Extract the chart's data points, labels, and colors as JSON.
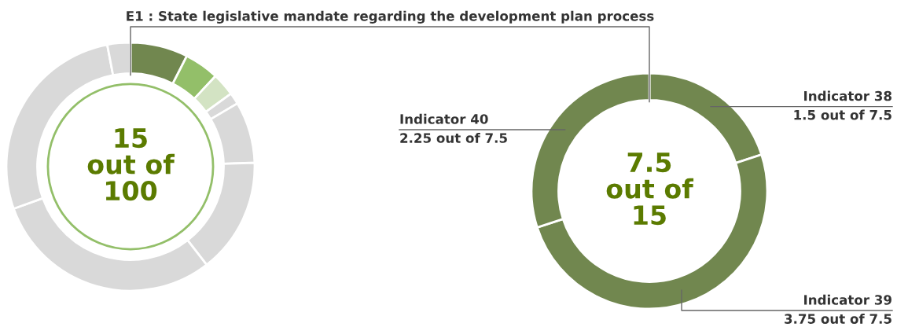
{
  "chart_data": [
    {
      "type": "donut",
      "categories": [
        null,
        null,
        null,
        null,
        null,
        null,
        null,
        null,
        null
      ],
      "values": [
        7.5,
        4.5,
        3,
        1.5,
        8,
        15,
        30,
        27.5,
        3
      ],
      "colors": [
        "#71874f",
        "#93bf69",
        "#d3e3c3",
        "#d9d9d9",
        "#d9d9d9",
        "#d9d9d9",
        "#d9d9d9",
        "#d9d9d9",
        "#d9d9d9"
      ],
      "annotations": [
        "15\nout of\n100",
        "E1 : State legislative mandate regarding the development plan process"
      ]
    },
    {
      "type": "donut",
      "categories": [
        "Indicator 38",
        "Indicator 39",
        "Indicator 40"
      ],
      "values": [
        1.5,
        3.75,
        2.25
      ],
      "colors": [
        "#71874f",
        "#71874f",
        "#71874f"
      ],
      "value_labels": [
        "1.5 out of 7.5",
        "3.75 out of 7.5",
        "2.25 out of 7.5"
      ],
      "annotations": [
        "7.5\nout of\n15"
      ]
    }
  ]
}
